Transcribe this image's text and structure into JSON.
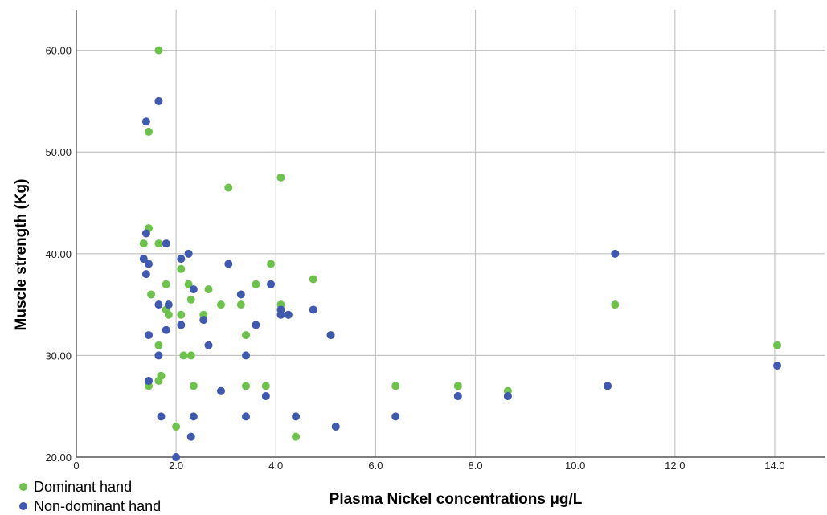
{
  "chart_data": {
    "type": "scatter",
    "title": "",
    "xlabel": "Plasma Nickel concentrations μg/L",
    "ylabel": "Muscle strength (Kg)",
    "xlim": [
      0,
      15
    ],
    "ylim": [
      20,
      64
    ],
    "x_ticks": [
      0,
      2,
      4,
      6,
      8,
      10,
      12,
      14
    ],
    "x_tick_labels": [
      "0",
      "2.0",
      "4.0",
      "6.0",
      "8.0",
      "10.0",
      "12.0",
      "14.0"
    ],
    "y_ticks": [
      20,
      30,
      40,
      50,
      60
    ],
    "y_tick_labels": [
      "20.00",
      "30.00",
      "40.00",
      "50.00",
      "60.00"
    ],
    "grid": true,
    "legend_position": "bottom-left",
    "series": [
      {
        "name": "Dominant hand",
        "color": "#6cc24a",
        "points": [
          [
            1.65,
            60
          ],
          [
            1.45,
            52
          ],
          [
            1.45,
            42.5
          ],
          [
            1.35,
            41
          ],
          [
            1.65,
            41
          ],
          [
            1.5,
            36
          ],
          [
            1.8,
            37
          ],
          [
            1.8,
            34.5
          ],
          [
            1.85,
            34
          ],
          [
            1.65,
            31
          ],
          [
            1.7,
            28
          ],
          [
            1.65,
            27.5
          ],
          [
            1.45,
            27
          ],
          [
            2.0,
            23
          ],
          [
            2.1,
            38.5
          ],
          [
            2.25,
            37
          ],
          [
            2.3,
            35.5
          ],
          [
            2.1,
            34
          ],
          [
            2.15,
            30
          ],
          [
            2.3,
            30
          ],
          [
            2.35,
            27
          ],
          [
            2.55,
            34
          ],
          [
            2.65,
            36.5
          ],
          [
            2.9,
            35
          ],
          [
            3.05,
            46.5
          ],
          [
            3.3,
            35
          ],
          [
            3.4,
            32
          ],
          [
            3.4,
            27
          ],
          [
            3.6,
            37
          ],
          [
            3.8,
            27
          ],
          [
            3.9,
            39
          ],
          [
            4.1,
            47.5
          ],
          [
            4.1,
            35
          ],
          [
            4.25,
            34
          ],
          [
            4.4,
            22
          ],
          [
            4.75,
            37.5
          ],
          [
            5.1,
            32
          ],
          [
            5.2,
            23
          ],
          [
            6.4,
            27
          ],
          [
            7.65,
            27
          ],
          [
            8.65,
            26.5
          ],
          [
            10.65,
            27
          ],
          [
            10.8,
            35
          ],
          [
            14.05,
            31
          ]
        ]
      },
      {
        "name": "Non-dominant hand",
        "color": "#3f58b0",
        "points": [
          [
            1.65,
            55
          ],
          [
            1.4,
            53
          ],
          [
            1.4,
            42
          ],
          [
            1.35,
            39.5
          ],
          [
            1.45,
            39
          ],
          [
            1.4,
            38
          ],
          [
            1.65,
            35
          ],
          [
            1.85,
            35
          ],
          [
            1.8,
            32.5
          ],
          [
            1.45,
            32
          ],
          [
            1.65,
            30
          ],
          [
            1.45,
            27.5
          ],
          [
            1.7,
            24
          ],
          [
            1.8,
            41
          ],
          [
            2.0,
            20
          ],
          [
            2.25,
            40
          ],
          [
            2.1,
            39.5
          ],
          [
            2.35,
            36.5
          ],
          [
            2.55,
            33.5
          ],
          [
            2.1,
            33
          ],
          [
            2.65,
            31
          ],
          [
            2.35,
            24
          ],
          [
            2.3,
            22
          ],
          [
            2.9,
            26.5
          ],
          [
            3.05,
            39
          ],
          [
            3.3,
            36
          ],
          [
            3.4,
            30
          ],
          [
            3.4,
            24
          ],
          [
            3.6,
            33
          ],
          [
            3.9,
            37
          ],
          [
            3.8,
            26
          ],
          [
            4.1,
            34.5
          ],
          [
            4.1,
            34
          ],
          [
            4.25,
            34
          ],
          [
            4.4,
            24
          ],
          [
            4.75,
            34.5
          ],
          [
            5.1,
            32
          ],
          [
            5.2,
            23
          ],
          [
            6.4,
            24
          ],
          [
            7.65,
            26
          ],
          [
            8.65,
            26
          ],
          [
            10.65,
            27
          ],
          [
            10.8,
            40
          ],
          [
            14.05,
            29
          ]
        ]
      }
    ]
  }
}
